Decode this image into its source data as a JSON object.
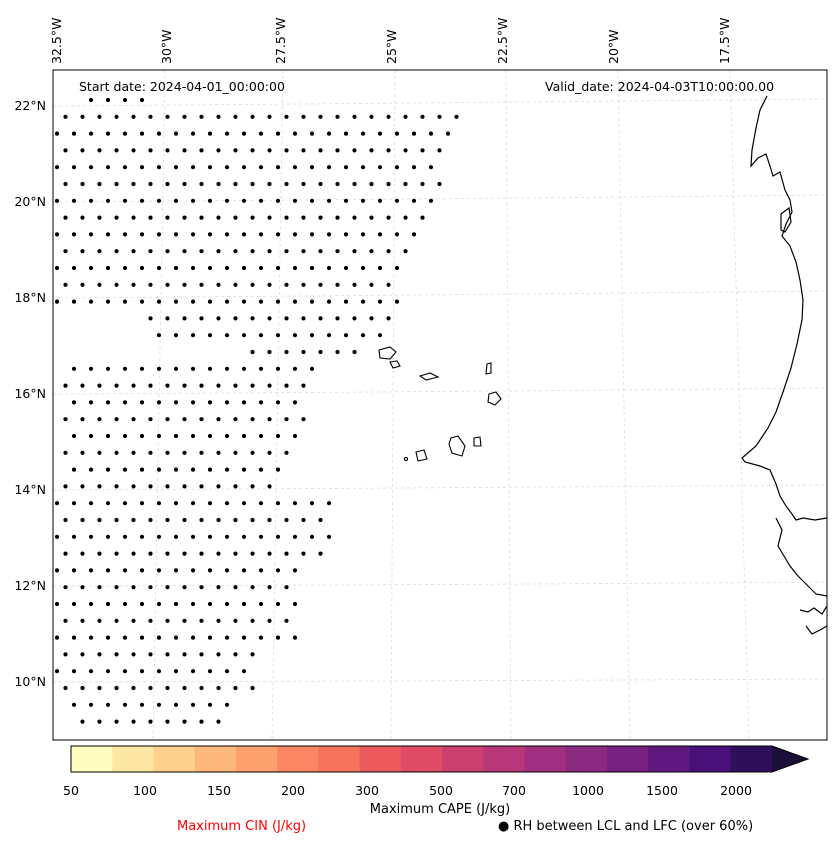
{
  "map": {
    "start_label": "Start date: 2024-04-01_00:00:00",
    "valid_label": "Valid_date: 2024-04-03T10:00:00.00",
    "lon_ticks": [
      "32.5°W",
      "30°W",
      "27.5°W",
      "25°W",
      "22.5°W",
      "20°W",
      "17.5°W"
    ],
    "lat_ticks": [
      "22°N",
      "20°N",
      "18°N",
      "16°N",
      "14°N",
      "12°N",
      "10°N"
    ]
  },
  "colorbar": {
    "title": "Maximum CAPE (J/kg)",
    "tick_labels": [
      "50",
      "100",
      "150",
      "200",
      "300",
      "500",
      "700",
      "1000",
      "1500",
      "2000"
    ],
    "colors": [
      "#fffdbf",
      "#fee7a4",
      "#fed28d",
      "#fdb97c",
      "#fca06e",
      "#fb8663",
      "#f6735c",
      "#ed5a5e",
      "#e04c66",
      "#cc4070",
      "#b73779",
      "#a12f7f",
      "#8c2981",
      "#762181",
      "#5f187e",
      "#49107a",
      "#2f0f59",
      "#1b0f3a"
    ]
  },
  "legend": {
    "cin_label": "Maximum CIN (J/kg)",
    "rh_label": "RH between LCL and LFC (over 60%)",
    "cin_color": "#ff0000"
  }
}
